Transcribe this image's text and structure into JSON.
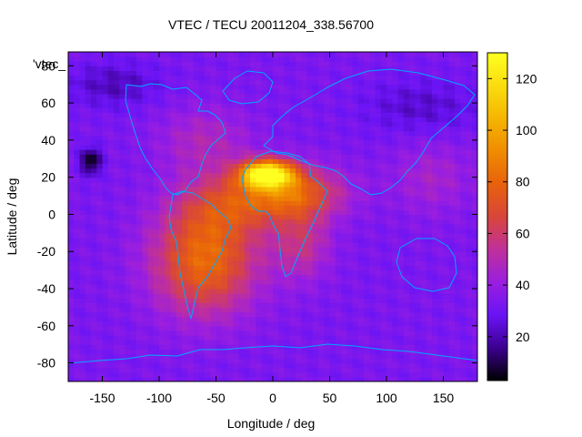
{
  "chart_data": {
    "type": "heatmap",
    "title": "VTEC / TECU 20011204_338.56700",
    "xlabel": "Longitude / deg",
    "ylabel": "Latitude / deg",
    "legend_label": "'vtec_",
    "xlim": [
      -180,
      180
    ],
    "ylim": [
      -90,
      87.5
    ],
    "x_ticks": [
      -150,
      -100,
      -50,
      0,
      50,
      100,
      150
    ],
    "y_ticks": [
      -80,
      -60,
      -40,
      -20,
      0,
      20,
      40,
      60,
      80
    ],
    "colorbar": {
      "min": 3,
      "max": 130,
      "ticks": [
        20,
        40,
        60,
        80,
        100,
        120
      ],
      "palette": [
        "#000000",
        "#3c0091",
        "#6a14f5",
        "#9a1ee0",
        "#c0309a",
        "#d8463a",
        "#e8610c",
        "#f08c00",
        "#f5b500",
        "#fadd10",
        "#ffff20"
      ]
    },
    "grid_resolution": {
      "lon_step_deg": 5,
      "lat_step_deg": 2.5
    },
    "background_tec": 33,
    "features": [
      {
        "name": "equatorial-anomaly-peak",
        "lon": 0,
        "lat": 22,
        "tec": 128
      },
      {
        "name": "south-atlantic-enhancement",
        "lon": -60,
        "lat": -25,
        "tec": 80
      },
      {
        "name": "north-pacific-minimum",
        "lon": -160,
        "lat": 29,
        "tec": 3
      }
    ]
  }
}
